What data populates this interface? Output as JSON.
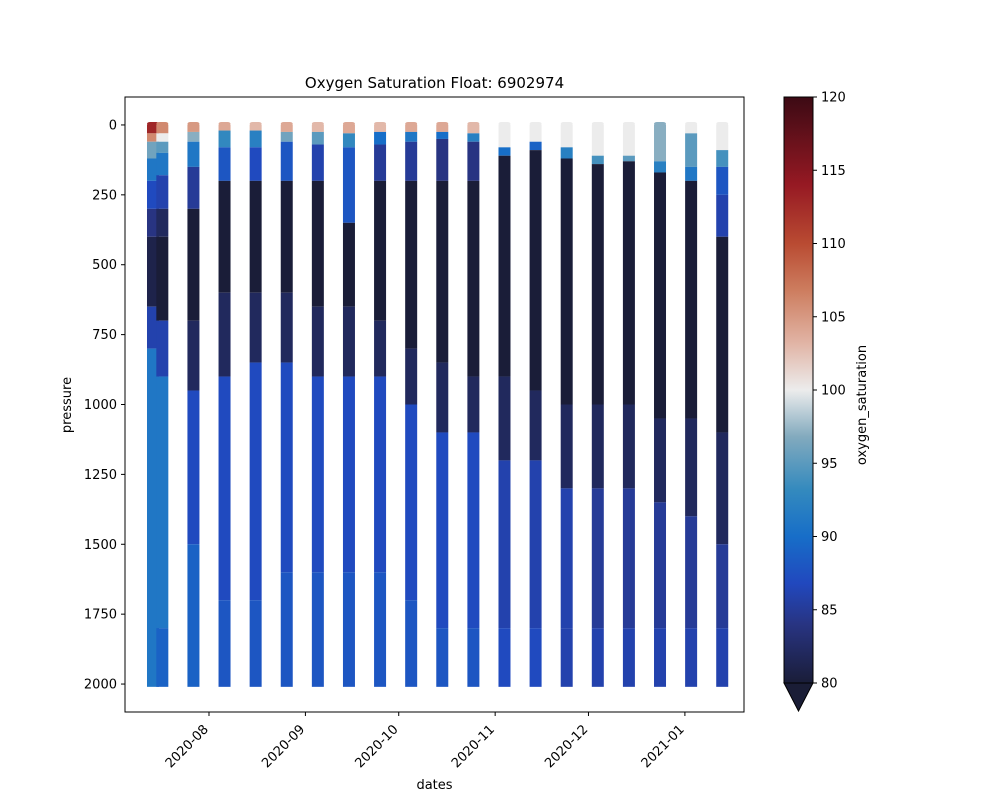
{
  "chart_data": {
    "type": "scatter",
    "title": "Oxygen Saturation Float: 6902974",
    "xlabel": "dates",
    "ylabel": "pressure",
    "y_inverted": true,
    "ylim": [
      2100,
      -100
    ],
    "yticks": [
      0,
      250,
      500,
      750,
      1000,
      1250,
      1500,
      1750,
      2000
    ],
    "xlim": [
      "2020-07-05",
      "2021-01-20"
    ],
    "xticks": [
      "2020-08",
      "2020-09",
      "2020-10",
      "2020-11",
      "2020-12",
      "2021-01"
    ],
    "colorbar": {
      "label": "oxygen_saturation",
      "min": 80,
      "max": 120,
      "ticks": [
        80,
        85,
        90,
        95,
        100,
        105,
        110,
        115,
        120
      ],
      "extend": "min"
    },
    "profile_pressure_range": [
      0,
      2010
    ],
    "profiles": [
      {
        "date": "2020-07-14",
        "p0": 0,
        "segments": [
          [
            0,
            30,
            113
          ],
          [
            30,
            60,
            106
          ],
          [
            60,
            120,
            96
          ],
          [
            120,
            200,
            91
          ],
          [
            200,
            300,
            87
          ],
          [
            300,
            400,
            84
          ],
          [
            400,
            650,
            81
          ],
          [
            650,
            800,
            86
          ],
          [
            800,
            2010,
            91
          ]
        ]
      },
      {
        "date": "2020-07-17",
        "p0": 0,
        "segments": [
          [
            0,
            30,
            106
          ],
          [
            30,
            60,
            100
          ],
          [
            60,
            100,
            95
          ],
          [
            100,
            180,
            91
          ],
          [
            180,
            300,
            86
          ],
          [
            300,
            400,
            82
          ],
          [
            400,
            700,
            80
          ],
          [
            700,
            900,
            86
          ],
          [
            900,
            1800,
            91
          ],
          [
            1800,
            2010,
            89
          ]
        ]
      },
      {
        "date": "2020-07-27",
        "p0": 0,
        "segments": [
          [
            0,
            25,
            105
          ],
          [
            25,
            60,
            97
          ],
          [
            60,
            150,
            91
          ],
          [
            150,
            300,
            85
          ],
          [
            300,
            700,
            80
          ],
          [
            700,
            950,
            82
          ],
          [
            950,
            1500,
            87
          ],
          [
            1500,
            2010,
            89
          ]
        ]
      },
      {
        "date": "2020-08-06",
        "p0": 0,
        "segments": [
          [
            0,
            20,
            104
          ],
          [
            20,
            80,
            93
          ],
          [
            80,
            200,
            88
          ],
          [
            200,
            600,
            80
          ],
          [
            600,
            900,
            82
          ],
          [
            900,
            1700,
            87
          ],
          [
            1700,
            2010,
            88
          ]
        ]
      },
      {
        "date": "2020-08-16",
        "p0": 0,
        "segments": [
          [
            0,
            20,
            103
          ],
          [
            20,
            80,
            92
          ],
          [
            80,
            200,
            87
          ],
          [
            200,
            600,
            80
          ],
          [
            600,
            850,
            82
          ],
          [
            850,
            1700,
            87
          ],
          [
            1700,
            2010,
            88
          ]
        ]
      },
      {
        "date": "2020-08-26",
        "p0": 0,
        "segments": [
          [
            0,
            25,
            104
          ],
          [
            25,
            60,
            96
          ],
          [
            60,
            200,
            88
          ],
          [
            200,
            600,
            80
          ],
          [
            600,
            850,
            82
          ],
          [
            850,
            1600,
            87
          ],
          [
            1600,
            2010,
            88
          ]
        ]
      },
      {
        "date": "2020-09-05",
        "p0": 0,
        "segments": [
          [
            0,
            25,
            103
          ],
          [
            25,
            70,
            95
          ],
          [
            70,
            200,
            86
          ],
          [
            200,
            650,
            80
          ],
          [
            650,
            900,
            82
          ],
          [
            900,
            1600,
            87
          ],
          [
            1600,
            2010,
            88
          ]
        ]
      },
      {
        "date": "2020-09-15",
        "p0": 0,
        "segments": [
          [
            0,
            30,
            104
          ],
          [
            30,
            80,
            93
          ],
          [
            80,
            350,
            88
          ],
          [
            350,
            650,
            80
          ],
          [
            650,
            900,
            82
          ],
          [
            900,
            1600,
            87
          ],
          [
            1600,
            2010,
            88
          ]
        ]
      },
      {
        "date": "2020-09-25",
        "p0": 0,
        "segments": [
          [
            0,
            25,
            103
          ],
          [
            25,
            70,
            90
          ],
          [
            70,
            200,
            85
          ],
          [
            200,
            700,
            80
          ],
          [
            700,
            900,
            82
          ],
          [
            900,
            1600,
            87
          ],
          [
            1600,
            2010,
            88
          ]
        ]
      },
      {
        "date": "2020-10-05",
        "p0": 0,
        "segments": [
          [
            0,
            25,
            104
          ],
          [
            25,
            60,
            91
          ],
          [
            60,
            200,
            85
          ],
          [
            200,
            800,
            80
          ],
          [
            800,
            1000,
            82
          ],
          [
            1000,
            1700,
            87
          ],
          [
            1700,
            2010,
            88
          ]
        ]
      },
      {
        "date": "2020-10-15",
        "p0": 0,
        "segments": [
          [
            0,
            25,
            104
          ],
          [
            25,
            50,
            90
          ],
          [
            50,
            200,
            84
          ],
          [
            200,
            850,
            80
          ],
          [
            850,
            1100,
            82
          ],
          [
            1100,
            1800,
            87
          ],
          [
            1800,
            2010,
            88
          ]
        ]
      },
      {
        "date": "2020-10-25",
        "p0": 0,
        "segments": [
          [
            0,
            30,
            103
          ],
          [
            30,
            60,
            92
          ],
          [
            60,
            200,
            84
          ],
          [
            200,
            900,
            80
          ],
          [
            900,
            1100,
            82
          ],
          [
            1100,
            1800,
            87
          ],
          [
            1800,
            2010,
            88
          ]
        ]
      },
      {
        "date": "2020-11-04",
        "p0": 0,
        "segments": [
          [
            0,
            80,
            100
          ],
          [
            80,
            110,
            90
          ],
          [
            110,
            900,
            80
          ],
          [
            900,
            1200,
            82
          ],
          [
            1200,
            1800,
            86
          ],
          [
            1800,
            2010,
            87
          ]
        ]
      },
      {
        "date": "2020-11-14",
        "p0": 0,
        "segments": [
          [
            0,
            60,
            100
          ],
          [
            60,
            90,
            89
          ],
          [
            90,
            950,
            80
          ],
          [
            950,
            1200,
            82
          ],
          [
            1200,
            1800,
            86
          ],
          [
            1800,
            2010,
            87
          ]
        ]
      },
      {
        "date": "2020-11-24",
        "p0": 0,
        "segments": [
          [
            0,
            80,
            100
          ],
          [
            80,
            120,
            92
          ],
          [
            120,
            1000,
            80
          ],
          [
            1000,
            1300,
            82
          ],
          [
            1300,
            1800,
            86
          ],
          [
            1800,
            2010,
            86
          ]
        ]
      },
      {
        "date": "2020-12-04",
        "p0": 0,
        "segments": [
          [
            0,
            110,
            100
          ],
          [
            110,
            140,
            94
          ],
          [
            140,
            1000,
            80
          ],
          [
            1000,
            1300,
            82
          ],
          [
            1300,
            1800,
            85
          ],
          [
            1800,
            2010,
            86
          ]
        ]
      },
      {
        "date": "2020-12-14",
        "p0": 0,
        "segments": [
          [
            0,
            110,
            100
          ],
          [
            110,
            130,
            95
          ],
          [
            130,
            1000,
            80
          ],
          [
            1000,
            1300,
            82
          ],
          [
            1300,
            1800,
            85
          ],
          [
            1800,
            2010,
            86
          ]
        ]
      },
      {
        "date": "2020-12-24",
        "p0": 0,
        "segments": [
          [
            0,
            130,
            97
          ],
          [
            130,
            170,
            92
          ],
          [
            170,
            1050,
            80
          ],
          [
            1050,
            1350,
            82
          ],
          [
            1350,
            1800,
            85
          ],
          [
            1800,
            2010,
            86
          ]
        ]
      },
      {
        "date": "2021-01-03",
        "p0": 0,
        "segments": [
          [
            0,
            30,
            100
          ],
          [
            30,
            150,
            95
          ],
          [
            150,
            200,
            91
          ],
          [
            200,
            1050,
            80
          ],
          [
            1050,
            1400,
            82
          ],
          [
            1400,
            1800,
            85
          ],
          [
            1800,
            2010,
            86
          ]
        ]
      },
      {
        "date": "2021-01-13",
        "p0": 0,
        "segments": [
          [
            0,
            90,
            100
          ],
          [
            90,
            150,
            94
          ],
          [
            150,
            250,
            88
          ],
          [
            250,
            400,
            86
          ],
          [
            400,
            1100,
            80
          ],
          [
            1100,
            1500,
            82
          ],
          [
            1500,
            1800,
            85
          ],
          [
            1800,
            2010,
            86
          ]
        ]
      }
    ]
  }
}
